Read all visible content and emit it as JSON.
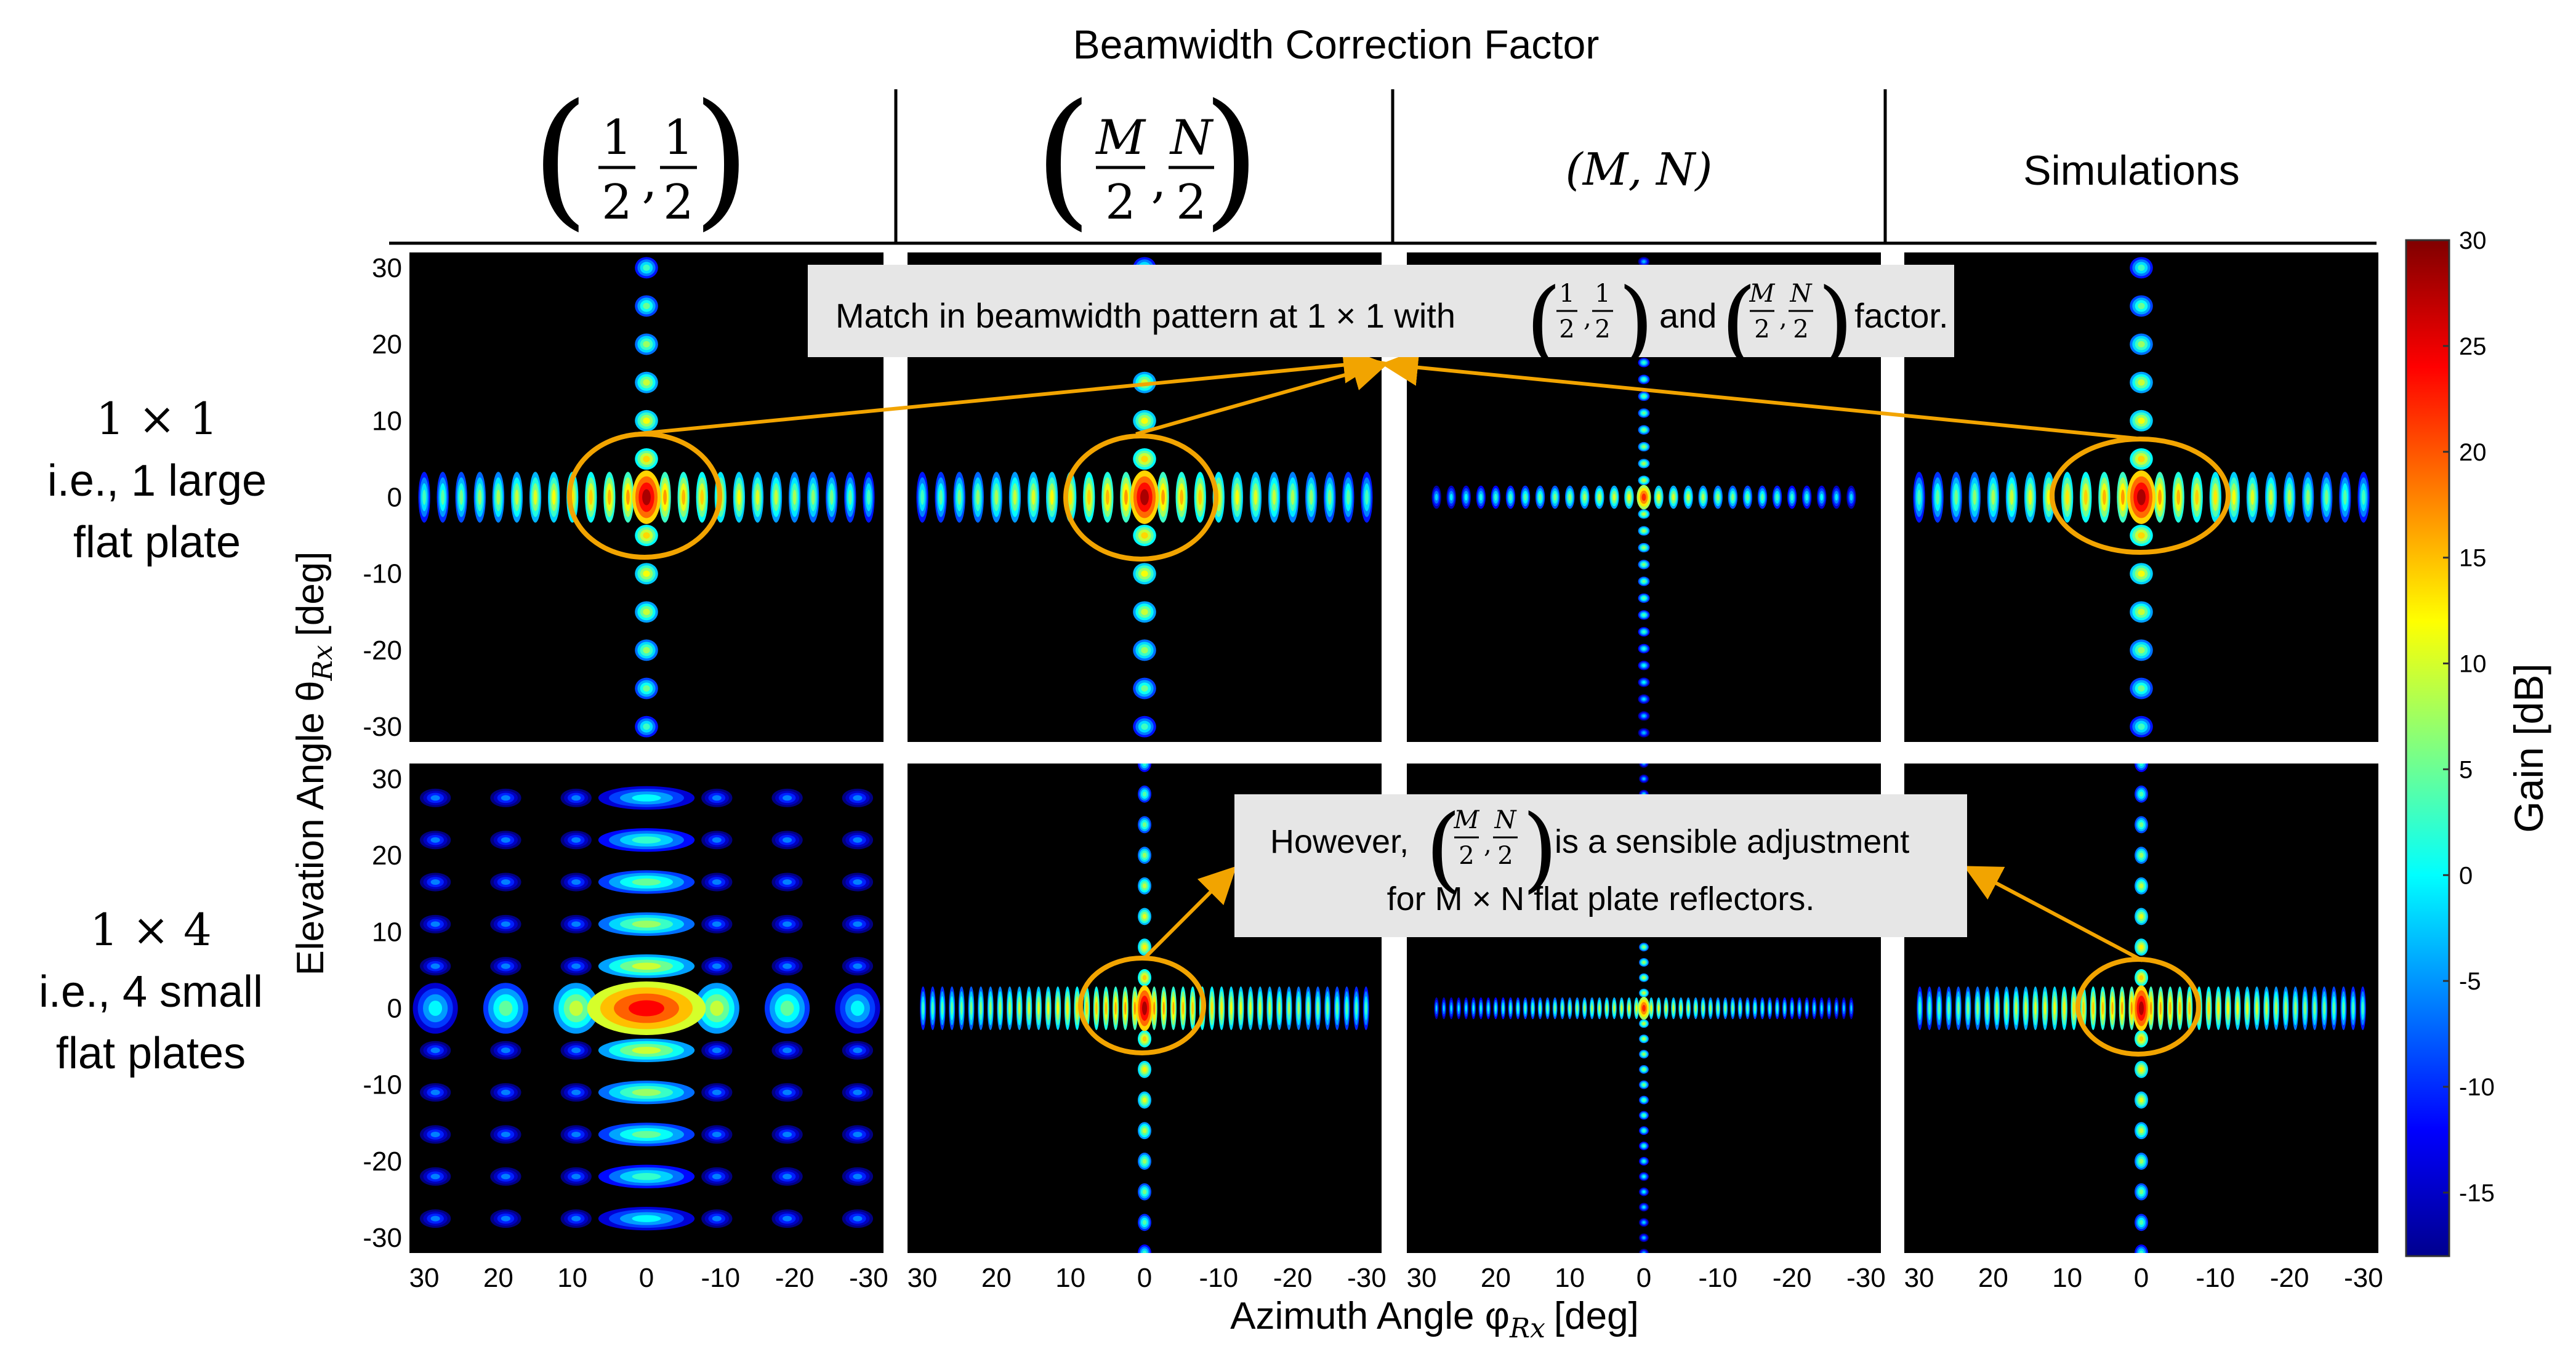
{
  "chart_data": {
    "type": "heatmap",
    "title": "Beamwidth Correction Factor",
    "column_labels": [
      {
        "name": "col-half-half",
        "math": [
          "1",
          "2",
          "1",
          "2"
        ]
      },
      {
        "name": "col-m2-n2",
        "math": [
          "M",
          "2",
          "N",
          "2"
        ]
      },
      {
        "name": "col-m-n",
        "text": "(M, N)"
      },
      {
        "name": "col-simulations",
        "text": "Simulations"
      }
    ],
    "row_labels": [
      {
        "lines": [
          "1 × 1",
          "i.e., 1 large",
          "flat plate"
        ]
      },
      {
        "lines": [
          "1 × 4",
          "i.e., 4 small",
          "flat plates"
        ]
      }
    ],
    "xlabel": "Azimuth Angle φ",
    "xlabel_sub": "Rx",
    "xlabel_unit": "[deg]",
    "ylabel": "Elevation Angle θ",
    "ylabel_sub": "Rx",
    "ylabel_unit": "[deg]",
    "x_ticks": [
      "30",
      "20",
      "10",
      "0",
      "-10",
      "-20",
      "-30"
    ],
    "x_tick_values": [
      30,
      20,
      10,
      0,
      -10,
      -20,
      -30
    ],
    "y_ticks": [
      "30",
      "20",
      "10",
      "0",
      "-10",
      "-20",
      "-30"
    ],
    "y_tick_values": [
      30,
      20,
      10,
      0,
      -10,
      -20,
      -30
    ],
    "xlim": [
      32,
      -32
    ],
    "ylim": [
      -32,
      32
    ],
    "colorbar": {
      "label": "Gain [dB]",
      "ticks": [
        "30",
        "25",
        "20",
        "15",
        "10",
        "5",
        "0",
        "-5",
        "-10",
        "-15"
      ],
      "tick_values": [
        30,
        25,
        20,
        15,
        10,
        5,
        0,
        -5,
        -10,
        -15
      ],
      "range": [
        -18,
        30
      ],
      "colormap": "jet"
    },
    "panels": [
      {
        "row": 0,
        "col": 0,
        "peak_db": 28,
        "lobe_period_az": 2.5,
        "lobe_period_el": 5.0,
        "az_extent": 32,
        "el_extent": 32,
        "main_half_az": 1.2,
        "main_half_el": 3.5
      },
      {
        "row": 0,
        "col": 1,
        "peak_db": 28,
        "lobe_period_az": 2.5,
        "lobe_period_el": 5.0,
        "az_extent": 32,
        "el_extent": 32,
        "main_half_az": 1.2,
        "main_half_el": 3.5
      },
      {
        "row": 0,
        "col": 2,
        "peak_db": 22,
        "lobe_period_az": 2.0,
        "lobe_period_el": 2.2,
        "az_extent": 28,
        "el_extent": 32,
        "main_half_az": 0.6,
        "main_half_el": 1.6
      },
      {
        "row": 0,
        "col": 3,
        "peak_db": 28,
        "lobe_period_az": 2.5,
        "lobe_period_el": 5.0,
        "az_extent": 32,
        "el_extent": 32,
        "main_half_az": 1.2,
        "main_half_el": 3.5
      },
      {
        "row": 1,
        "col": 0,
        "peak_db": 24,
        "lobe_period_az": 9.5,
        "lobe_period_el": 5.5,
        "az_extent": 32,
        "el_extent": 32,
        "main_half_az": 5.0,
        "main_half_el": 3.5
      },
      {
        "row": 1,
        "col": 1,
        "peak_db": 28,
        "lobe_period_az": 1.3,
        "lobe_period_el": 4.0,
        "az_extent": 31,
        "el_extent": 32,
        "main_half_az": 0.7,
        "main_half_el": 3.0
      },
      {
        "row": 1,
        "col": 2,
        "peak_db": 22,
        "lobe_period_az": 1.0,
        "lobe_period_el": 2.0,
        "az_extent": 28,
        "el_extent": 32,
        "main_half_az": 0.5,
        "main_half_el": 1.5
      },
      {
        "row": 1,
        "col": 3,
        "peak_db": 28,
        "lobe_period_az": 1.3,
        "lobe_period_el": 4.0,
        "az_extent": 31,
        "el_extent": 32,
        "main_half_az": 0.7,
        "main_half_el": 3.0
      }
    ],
    "annotations": {
      "top": {
        "prefix": "Match in beamwidth pattern at 1 × 1 with",
        "mid": "and",
        "suffix": "factor."
      },
      "bottom": {
        "line1_prefix": "However,",
        "line1_suffix": "is a sensible adjustment",
        "line2": "for M × N flat plate reflectors."
      },
      "ellipse_color": "#f2a400"
    }
  }
}
